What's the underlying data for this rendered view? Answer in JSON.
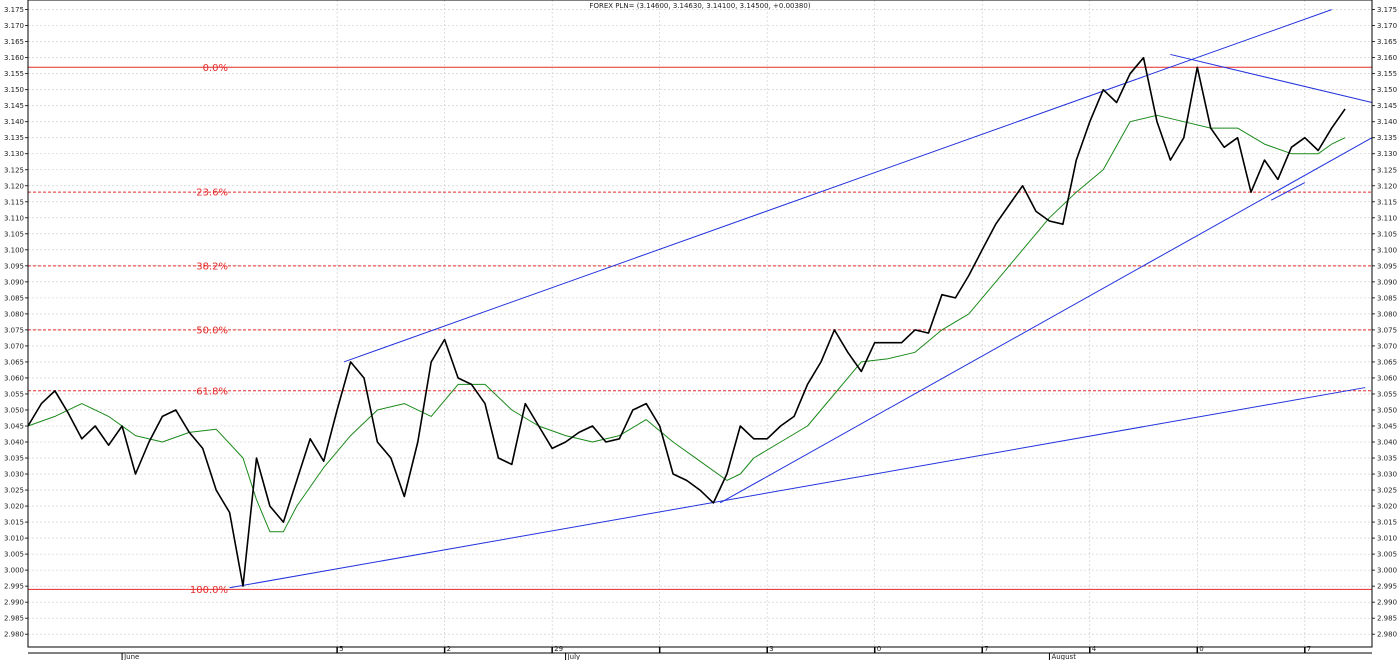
{
  "chart_data": {
    "type": "line",
    "title": "FOREX PLN= (3.14600, 3.14630, 3.14100, 3.14500, +0.00380)",
    "xlabel": "",
    "ylabel": "",
    "ylim": [
      2.976,
      3.178
    ],
    "y_ticks": [
      "2.980",
      "2.985",
      "2.990",
      "2.995",
      "3.000",
      "3.005",
      "3.010",
      "3.015",
      "3.020",
      "3.025",
      "3.030",
      "3.035",
      "3.040",
      "3.045",
      "3.050",
      "3.055",
      "3.060",
      "3.065",
      "3.070",
      "3.075",
      "3.080",
      "3.085",
      "3.090",
      "3.095",
      "3.100",
      "3.105",
      "3.110",
      "3.115",
      "3.120",
      "3.125",
      "3.130",
      "3.135",
      "3.140",
      "3.145",
      "3.150",
      "3.155",
      "3.160",
      "3.165",
      "3.170",
      "3.175"
    ],
    "x_range": [
      0,
      100
    ],
    "grid": true,
    "legend": "none",
    "month_labels": [
      {
        "label": "June",
        "x": 7.0
      },
      {
        "label": "July",
        "x": 40.0
      },
      {
        "label": "August",
        "x": 76.0
      }
    ],
    "week_labels": [
      {
        "label": "5",
        "x": 23.0
      },
      {
        "label": "2",
        "x": 31.0
      },
      {
        "label": "29",
        "x": 39.0
      },
      {
        "label": "",
        "x": 47.0
      },
      {
        "label": "3",
        "x": 55.0
      },
      {
        "label": "0",
        "x": 63.0
      },
      {
        "label": "7",
        "x": 71.0
      },
      {
        "label": "4",
        "x": 79.0
      },
      {
        "label": "0",
        "x": 87.0
      },
      {
        "label": "7",
        "x": 95.0
      }
    ],
    "fibonacci": [
      {
        "label": "0.0%",
        "y": 3.157,
        "solid": true
      },
      {
        "label": "23.6%",
        "y": 3.118,
        "solid": false
      },
      {
        "label": "38.2%",
        "y": 3.095,
        "solid": false
      },
      {
        "label": "50.0%",
        "y": 3.075,
        "solid": false
      },
      {
        "label": "61.8%",
        "y": 3.056,
        "solid": false
      },
      {
        "label": "100.0%",
        "y": 2.994,
        "solid": true
      }
    ],
    "trendlines": [
      {
        "x1": 23.5,
        "y1": 3.065,
        "x2": 97.0,
        "y2": 3.175
      },
      {
        "x1": 15.0,
        "y1": 2.9945,
        "x2": 99.5,
        "y2": 3.057
      },
      {
        "x1": 51.5,
        "y1": 3.021,
        "x2": 100.0,
        "y2": 3.135
      },
      {
        "x1": 85.0,
        "y1": 3.161,
        "x2": 100.0,
        "y2": 3.146
      },
      {
        "x1": 92.5,
        "y1": 3.1155,
        "x2": 95.0,
        "y2": 3.121
      }
    ],
    "series": [
      {
        "name": "",
        "color": "#000000",
        "x": [
          0,
          1,
          2,
          3,
          4,
          5,
          6,
          7,
          8,
          9,
          10,
          11,
          12,
          13,
          14,
          15,
          16,
          17,
          18,
          19,
          20,
          21,
          22,
          23,
          24,
          25,
          26,
          27,
          28,
          29,
          30,
          31,
          32,
          33,
          34,
          35,
          36,
          37,
          38,
          39,
          40,
          41,
          42,
          43,
          44,
          45,
          46,
          47,
          48,
          49,
          50,
          51,
          52,
          53,
          54,
          55,
          56,
          57,
          58,
          59,
          60,
          61,
          62,
          63,
          64,
          65,
          66,
          67,
          68,
          69,
          70,
          71,
          72,
          73,
          74,
          75,
          76,
          77,
          78,
          79,
          80,
          81,
          82,
          83,
          84,
          85,
          86,
          87,
          88,
          89,
          90,
          91,
          92,
          93,
          94,
          95,
          96,
          97,
          98
        ],
        "values": [
          3.045,
          3.052,
          3.056,
          3.049,
          3.041,
          3.045,
          3.039,
          3.045,
          3.03,
          3.04,
          3.048,
          3.05,
          3.043,
          3.038,
          3.025,
          3.018,
          2.995,
          3.035,
          3.02,
          3.015,
          3.028,
          3.041,
          3.034,
          3.05,
          3.065,
          3.06,
          3.04,
          3.035,
          3.023,
          3.04,
          3.065,
          3.072,
          3.06,
          3.058,
          3.052,
          3.035,
          3.033,
          3.052,
          3.045,
          3.038,
          3.04,
          3.043,
          3.045,
          3.04,
          3.041,
          3.05,
          3.052,
          3.045,
          3.03,
          3.028,
          3.025,
          3.021,
          3.03,
          3.045,
          3.041,
          3.041,
          3.045,
          3.048,
          3.058,
          3.065,
          3.075,
          3.068,
          3.062,
          3.071,
          3.071,
          3.071,
          3.075,
          3.074,
          3.086,
          3.085,
          3.092,
          3.1,
          3.108,
          3.114,
          3.12,
          3.112,
          3.109,
          3.108,
          3.128,
          3.14,
          3.15,
          3.146,
          3.155,
          3.16,
          3.14,
          3.128,
          3.135,
          3.157,
          3.138,
          3.132,
          3.135,
          3.118,
          3.128,
          3.122,
          3.132,
          3.135,
          3.131,
          3.138,
          3.144
        ]
      },
      {
        "name": "",
        "color": "#1a8a1a",
        "x": [
          0,
          2,
          4,
          6,
          8,
          10,
          12,
          14,
          16,
          17,
          18,
          19,
          20,
          22,
          24,
          26,
          28,
          30,
          32,
          34,
          36,
          38,
          40,
          42,
          44,
          46,
          48,
          50,
          52,
          53,
          54,
          56,
          58,
          60,
          62,
          64,
          66,
          68,
          70,
          72,
          74,
          76,
          78,
          80,
          82,
          84,
          86,
          88,
          90,
          92,
          94,
          96,
          97,
          98
        ],
        "values": [
          3.045,
          3.048,
          3.052,
          3.048,
          3.042,
          3.04,
          3.043,
          3.044,
          3.035,
          3.022,
          3.012,
          3.012,
          3.02,
          3.032,
          3.042,
          3.05,
          3.052,
          3.048,
          3.058,
          3.058,
          3.05,
          3.045,
          3.042,
          3.04,
          3.042,
          3.047,
          3.04,
          3.034,
          3.028,
          3.03,
          3.035,
          3.04,
          3.045,
          3.055,
          3.065,
          3.066,
          3.068,
          3.075,
          3.08,
          3.09,
          3.1,
          3.11,
          3.118,
          3.125,
          3.14,
          3.142,
          3.14,
          3.138,
          3.138,
          3.133,
          3.13,
          3.13,
          3.133,
          3.135
        ]
      }
    ]
  }
}
